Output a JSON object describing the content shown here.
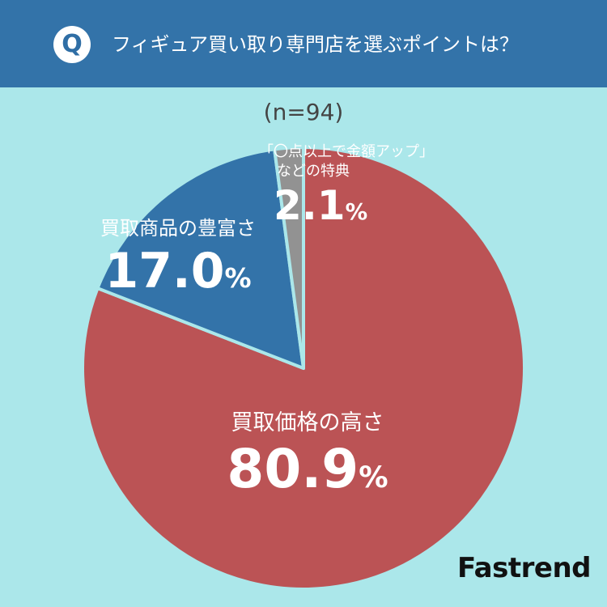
{
  "header": {
    "q_label": "Q",
    "title": "フィギュア買い取り専門店を選ぶポイントは？"
  },
  "sample_label": "(n=94)",
  "brand": "Fastrend",
  "chart_data": {
    "type": "pie",
    "title": "フィギュア買い取り専門店を選ぶポイントは？",
    "n": 94,
    "unit": "%",
    "start_angle_deg": 0,
    "direction": "clockwise",
    "slices": [
      {
        "label": "買取価格の高さ",
        "value": 80.9,
        "value_text": "80.9",
        "color": "#bb5355"
      },
      {
        "label": "買取商品の豊富さ",
        "value": 17.0,
        "value_text": "17.0",
        "color": "#3373a9"
      },
      {
        "label_line1": "「〇点以上で金額アップ」",
        "label_line2": "などの特典",
        "label": "「〇点以上で金額アップ」などの特典",
        "value": 2.1,
        "value_text": "2.1",
        "color": "#929292"
      }
    ],
    "separator_color": "#abe7ea"
  }
}
